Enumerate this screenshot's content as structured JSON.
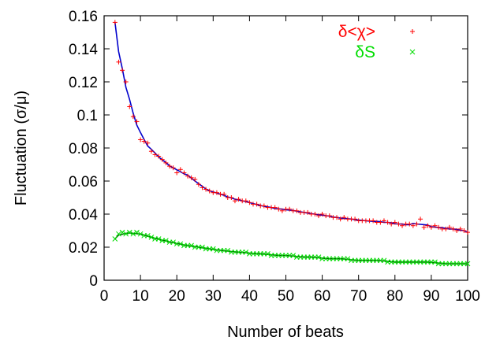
{
  "chart_data": {
    "type": "scatter",
    "title": "",
    "xlabel": "Number of beats",
    "ylabel": "Fluctuation (σ/μ)",
    "xlim": [
      0,
      100
    ],
    "ylim": [
      0,
      0.16
    ],
    "x_ticks": [
      "0",
      "10",
      "20",
      "30",
      "40",
      "50",
      "60",
      "70",
      "80",
      "90",
      "100"
    ],
    "y_ticks": [
      "0",
      "0.02",
      "0.04",
      "0.06",
      "0.08",
      "0.1",
      "0.12",
      "0.14",
      "0.16"
    ],
    "grid": false,
    "legend_position": "top-right",
    "series": [
      {
        "name": "δ<χ>",
        "marker": "plus",
        "color": "#ff0000",
        "fit_color": "#0000cc",
        "x": [
          3,
          4,
          5,
          6,
          7,
          8,
          9,
          10,
          11,
          12,
          13,
          14,
          15,
          16,
          17,
          18,
          19,
          20,
          21,
          22,
          23,
          24,
          25,
          26,
          27,
          28,
          29,
          30,
          31,
          32,
          33,
          34,
          35,
          36,
          37,
          38,
          39,
          40,
          41,
          42,
          43,
          44,
          45,
          46,
          47,
          48,
          49,
          50,
          51,
          52,
          53,
          54,
          55,
          56,
          57,
          58,
          59,
          60,
          61,
          62,
          63,
          64,
          65,
          66,
          67,
          68,
          69,
          70,
          71,
          72,
          73,
          74,
          75,
          76,
          77,
          78,
          79,
          80,
          81,
          82,
          83,
          84,
          85,
          86,
          87,
          88,
          89,
          90,
          91,
          92,
          93,
          94,
          95,
          96,
          97,
          98,
          99,
          100
        ],
        "values": [
          0.156,
          0.132,
          0.127,
          0.12,
          0.105,
          0.099,
          0.096,
          0.085,
          0.084,
          0.083,
          0.078,
          0.076,
          0.075,
          0.073,
          0.071,
          0.069,
          0.068,
          0.065,
          0.067,
          0.065,
          0.063,
          0.062,
          0.061,
          0.058,
          0.056,
          0.055,
          0.054,
          0.053,
          0.053,
          0.052,
          0.052,
          0.05,
          0.05,
          0.048,
          0.049,
          0.048,
          0.048,
          0.047,
          0.046,
          0.046,
          0.045,
          0.045,
          0.044,
          0.044,
          0.044,
          0.043,
          0.042,
          0.043,
          0.043,
          0.042,
          0.042,
          0.041,
          0.041,
          0.041,
          0.04,
          0.04,
          0.039,
          0.04,
          0.039,
          0.039,
          0.038,
          0.038,
          0.037,
          0.038,
          0.037,
          0.037,
          0.037,
          0.036,
          0.036,
          0.036,
          0.036,
          0.036,
          0.035,
          0.035,
          0.036,
          0.035,
          0.034,
          0.035,
          0.034,
          0.033,
          0.034,
          0.034,
          0.033,
          0.034,
          0.037,
          0.032,
          0.033,
          0.032,
          0.033,
          0.032,
          0.031,
          0.031,
          0.032,
          0.031,
          0.03,
          0.031,
          0.03,
          0.029
        ]
      },
      {
        "name": "δS",
        "marker": "cross",
        "color": "#00dd00",
        "fit_color": "#006600",
        "x": [
          3,
          4,
          5,
          6,
          7,
          8,
          9,
          10,
          11,
          12,
          13,
          14,
          15,
          16,
          17,
          18,
          19,
          20,
          21,
          22,
          23,
          24,
          25,
          26,
          27,
          28,
          29,
          30,
          31,
          32,
          33,
          34,
          35,
          36,
          37,
          38,
          39,
          40,
          41,
          42,
          43,
          44,
          45,
          46,
          47,
          48,
          49,
          50,
          51,
          52,
          53,
          54,
          55,
          56,
          57,
          58,
          59,
          60,
          61,
          62,
          63,
          64,
          65,
          66,
          67,
          68,
          69,
          70,
          71,
          72,
          73,
          74,
          75,
          76,
          77,
          78,
          79,
          80,
          81,
          82,
          83,
          84,
          85,
          86,
          87,
          88,
          89,
          90,
          91,
          92,
          93,
          94,
          95,
          96,
          97,
          98,
          99,
          100
        ],
        "values": [
          0.025,
          0.028,
          0.029,
          0.028,
          0.029,
          0.028,
          0.029,
          0.028,
          0.027,
          0.027,
          0.026,
          0.025,
          0.025,
          0.024,
          0.024,
          0.023,
          0.023,
          0.022,
          0.022,
          0.021,
          0.021,
          0.021,
          0.02,
          0.02,
          0.02,
          0.019,
          0.019,
          0.019,
          0.018,
          0.018,
          0.018,
          0.018,
          0.017,
          0.017,
          0.017,
          0.017,
          0.017,
          0.016,
          0.016,
          0.016,
          0.016,
          0.016,
          0.016,
          0.015,
          0.015,
          0.015,
          0.015,
          0.015,
          0.015,
          0.015,
          0.014,
          0.014,
          0.014,
          0.014,
          0.014,
          0.014,
          0.014,
          0.013,
          0.013,
          0.013,
          0.013,
          0.013,
          0.013,
          0.013,
          0.013,
          0.012,
          0.012,
          0.012,
          0.012,
          0.012,
          0.012,
          0.012,
          0.012,
          0.012,
          0.012,
          0.011,
          0.011,
          0.011,
          0.011,
          0.011,
          0.011,
          0.011,
          0.011,
          0.011,
          0.011,
          0.011,
          0.011,
          0.011,
          0.011,
          0.01,
          0.01,
          0.01,
          0.01,
          0.01,
          0.01,
          0.01,
          0.01,
          0.01
        ]
      }
    ]
  }
}
